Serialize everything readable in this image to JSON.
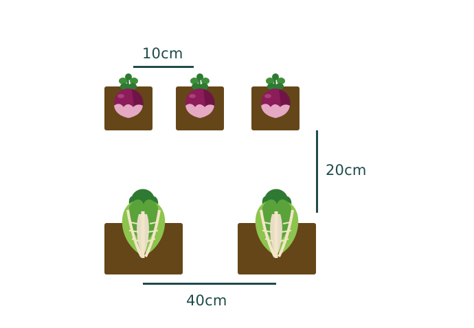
{
  "diagram": {
    "dimensions": {
      "turnip_spacing": "10cm",
      "row_spacing": "20cm",
      "lettuce_spacing": "40cm"
    },
    "colors": {
      "soil": "#654618",
      "line": "#1f4a4a",
      "turnip_body": "#8c1c5a",
      "turnip_skin": "#e6a9c4",
      "leaf_dark": "#2f7a32",
      "leaf_mid": "#5aa33a",
      "leaf_light": "#8cc44e",
      "stem": "#f3e6c8"
    },
    "plants": [
      {
        "icon": "turnip-icon",
        "row": 1,
        "count": 3
      },
      {
        "icon": "lettuce-icon",
        "row": 2,
        "count": 2
      }
    ]
  }
}
